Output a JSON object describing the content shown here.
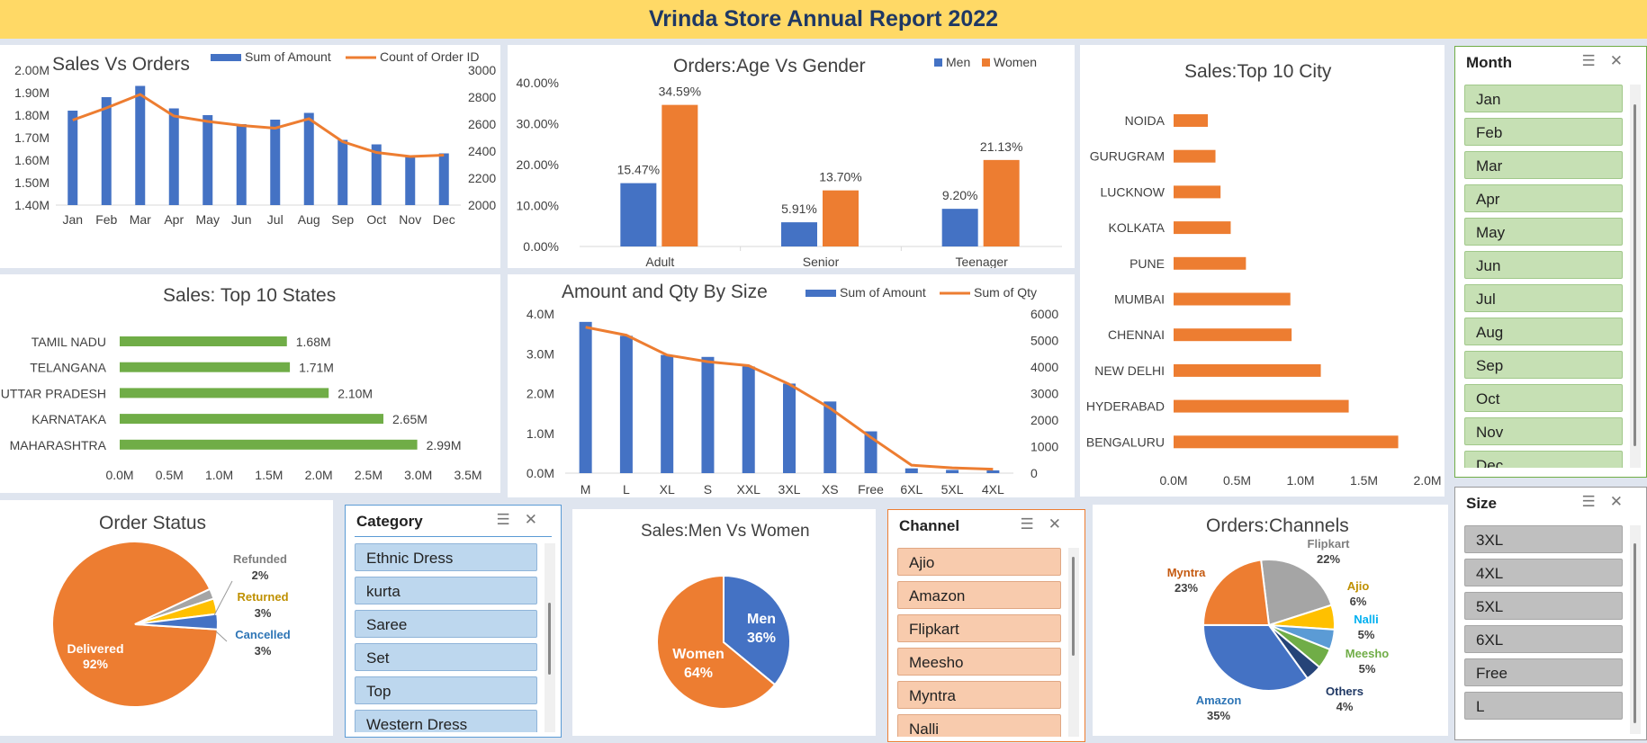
{
  "header": {
    "title": "Vrinda Store Annual Report 2022"
  },
  "colors": {
    "blue": "#4472c4",
    "orange": "#ed7d31",
    "green": "#70ad47",
    "gray": "#a5a5a5",
    "yellow": "#ffc000",
    "lightblue": "#5b9bd5",
    "navy": "#264478"
  },
  "sales_orders": {
    "title": "Sales Vs Orders",
    "legend_bar": "Sum of Amount",
    "legend_line": "Count of Order ID",
    "chart_data": {
      "type": "bar",
      "categories": [
        "Jan",
        "Feb",
        "Mar",
        "Apr",
        "May",
        "Jun",
        "Jul",
        "Aug",
        "Sep",
        "Oct",
        "Nov",
        "Dec"
      ],
      "series": [
        {
          "name": "Sum of Amount",
          "values": [
            1.82,
            1.88,
            1.93,
            1.83,
            1.8,
            1.76,
            1.78,
            1.81,
            1.69,
            1.67,
            1.62,
            1.63
          ],
          "axis": "left"
        },
        {
          "name": "Count of Order ID",
          "values": [
            2630,
            2720,
            2820,
            2660,
            2620,
            2590,
            2570,
            2640,
            2470,
            2390,
            2360,
            2370
          ],
          "axis": "right",
          "type": "line"
        }
      ],
      "yticks_left": [
        "1.40M",
        "1.50M",
        "1.60M",
        "1.70M",
        "1.80M",
        "1.90M",
        "2.00M"
      ],
      "yticks_right": [
        "2000",
        "2200",
        "2400",
        "2600",
        "2800",
        "3000"
      ],
      "ylim_left": [
        1.4,
        2.0
      ],
      "ylim_right": [
        2000,
        3000
      ]
    }
  },
  "age_gender": {
    "title": "Orders:Age Vs Gender",
    "legend": [
      "Men",
      "Women"
    ],
    "chart_data": {
      "type": "bar",
      "categories": [
        "Adult",
        "Senior",
        "Teenager"
      ],
      "series": [
        {
          "name": "Men",
          "values": [
            15.47,
            5.91,
            9.2
          ],
          "labels": [
            "15.47%",
            "5.91%",
            "9.20%"
          ]
        },
        {
          "name": "Women",
          "values": [
            34.59,
            13.7,
            21.13
          ],
          "labels": [
            "34.59%",
            "13.70%",
            "21.13%"
          ]
        }
      ],
      "yticks": [
        "0.00%",
        "10.00%",
        "20.00%",
        "30.00%",
        "40.00%"
      ],
      "ylim": [
        0,
        40
      ]
    }
  },
  "top_city": {
    "title": "Sales:Top 10 City",
    "chart_data": {
      "type": "bar",
      "orientation": "horizontal",
      "categories": [
        "NOIDA",
        "GURUGRAM",
        "LUCKNOW",
        "KOLKATA",
        "PUNE",
        "MUMBAI",
        "CHENNAI",
        "NEW DELHI",
        "HYDERABAD",
        "BENGALURU"
      ],
      "values": [
        0.27,
        0.33,
        0.37,
        0.45,
        0.57,
        0.92,
        0.93,
        1.16,
        1.38,
        1.77
      ],
      "xticks": [
        "0.0M",
        "0.5M",
        "1.0M",
        "1.5M",
        "2.0M"
      ],
      "xlim": [
        0,
        2.0
      ]
    }
  },
  "top_states": {
    "title": "Sales: Top 10 States",
    "chart_data": {
      "type": "bar",
      "orientation": "horizontal",
      "categories": [
        "TAMIL NADU",
        "TELANGANA",
        "UTTAR PRADESH",
        "KARNATAKA",
        "MAHARASHTRA"
      ],
      "values": [
        1.68,
        1.71,
        2.1,
        2.65,
        2.99
      ],
      "labels": [
        "1.68M",
        "1.71M",
        "2.10M",
        "2.65M",
        "2.99M"
      ],
      "xticks": [
        "0.0M",
        "0.5M",
        "1.0M",
        "1.5M",
        "2.0M",
        "2.5M",
        "3.0M",
        "3.5M"
      ],
      "xlim": [
        0,
        3.5
      ]
    }
  },
  "size_chart": {
    "title": "Amount and Qty By Size",
    "legend_bar": "Sum of Amount",
    "legend_line": "Sum of Qty",
    "chart_data": {
      "type": "bar",
      "categories": [
        "M",
        "L",
        "XL",
        "S",
        "XXL",
        "3XL",
        "XS",
        "Free",
        "6XL",
        "5XL",
        "4XL"
      ],
      "series": [
        {
          "name": "Sum of Amount",
          "values": [
            3.8,
            3.45,
            2.97,
            2.92,
            2.68,
            2.25,
            1.8,
            1.05,
            0.12,
            0.08,
            0.07
          ],
          "axis": "left"
        },
        {
          "name": "Sum of Qty",
          "values": [
            5500,
            5200,
            4450,
            4200,
            4050,
            3350,
            2450,
            1350,
            300,
            200,
            150
          ],
          "axis": "right",
          "type": "line"
        }
      ],
      "yticks_left": [
        "0.0M",
        "1.0M",
        "2.0M",
        "3.0M",
        "4.0M"
      ],
      "yticks_right": [
        "0",
        "1000",
        "2000",
        "3000",
        "4000",
        "5000",
        "6000"
      ],
      "ylim_left": [
        0,
        4
      ],
      "ylim_right": [
        0,
        6000
      ]
    }
  },
  "order_status": {
    "title": "Order Status",
    "chart_data": {
      "type": "pie",
      "categories": [
        "Delivered",
        "Refunded",
        "Returned",
        "Cancelled"
      ],
      "values": [
        92,
        2,
        3,
        3
      ],
      "labels": [
        "92%",
        "2%",
        "3%",
        "3%"
      ]
    }
  },
  "men_women": {
    "title": "Sales:Men Vs Women",
    "chart_data": {
      "type": "pie",
      "categories": [
        "Men",
        "Women"
      ],
      "values": [
        36,
        64
      ],
      "labels": [
        "36%",
        "64%"
      ]
    }
  },
  "channels": {
    "title": "Orders:Channels",
    "chart_data": {
      "type": "pie",
      "categories": [
        "Flipkart",
        "Ajio",
        "Nalli",
        "Meesho",
        "Others",
        "Amazon",
        "Myntra"
      ],
      "values": [
        22,
        6,
        5,
        5,
        4,
        35,
        23
      ],
      "labels": [
        "22%",
        "6%",
        "5%",
        "5%",
        "4%",
        "35%",
        "23%"
      ]
    }
  },
  "category_slicer": {
    "title": "Category",
    "items": [
      "Ethnic Dress",
      "kurta",
      "Saree",
      "Set",
      "Top",
      "Western Dress"
    ]
  },
  "channel_slicer": {
    "title": "Channel",
    "items": [
      "Ajio",
      "Amazon",
      "Flipkart",
      "Meesho",
      "Myntra",
      "Nalli"
    ]
  },
  "month_slicer": {
    "title": "Month",
    "items": [
      "Jan",
      "Feb",
      "Mar",
      "Apr",
      "May",
      "Jun",
      "Jul",
      "Aug",
      "Sep",
      "Oct",
      "Nov",
      "Dec"
    ]
  },
  "size_slicer": {
    "title": "Size",
    "items": [
      "3XL",
      "4XL",
      "5XL",
      "6XL",
      "Free",
      "L"
    ]
  }
}
